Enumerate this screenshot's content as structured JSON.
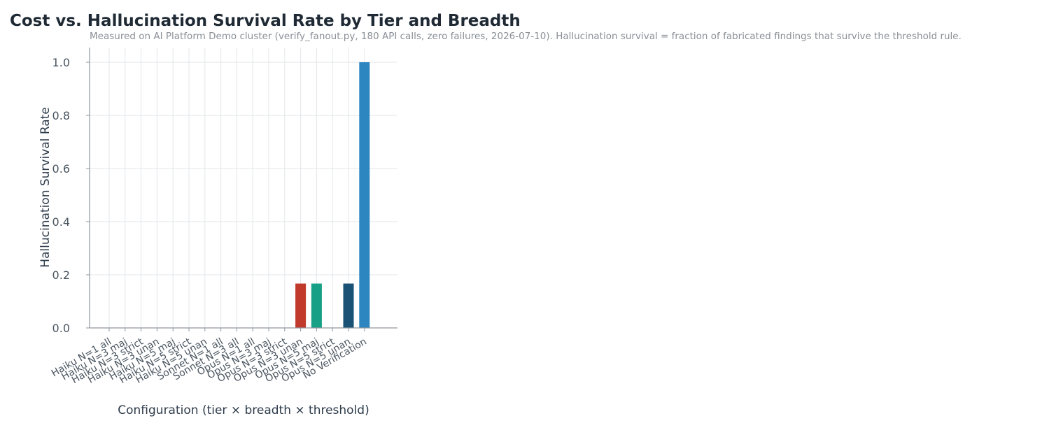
{
  "chart_data": {
    "type": "bar",
    "title": "Cost vs. Hallucination Survival Rate by Tier and Breadth",
    "subtitle": "Measured on AI Platform Demo cluster (verify_fanout.py, 180 API calls, zero failures, 2026-07-10). Hallucination survival = fraction of fabricated findings that survive the threshold rule.",
    "xlabel": "Configuration (tier × breadth × threshold)",
    "ylabel": "Hallucination Survival Rate",
    "ylim": [
      0,
      1.05
    ],
    "yticks": [
      "0.0",
      "0.2",
      "0.4",
      "0.6",
      "0.8",
      "1.0"
    ],
    "grid": true,
    "categories": [
      "Haiku N=1 all",
      "Haiku N=3 maj",
      "Haiku N=3 strict",
      "Haiku N=3 unan",
      "Haiku N=5 maj",
      "Haiku N=5 strict",
      "Haiku N=5 unan",
      "Sonnet N=1 all",
      "Sonnet N=3 all",
      "Opus N=1 all",
      "Opus N=3 maj",
      "Opus N=3 strict",
      "Opus N=3 unan",
      "Opus N=5 maj",
      "Opus N=5 strict",
      "Opus N=5 unan",
      "No Verification"
    ],
    "values": [
      0,
      0,
      0,
      0,
      0,
      0,
      0,
      0,
      0,
      0,
      0,
      0,
      0.167,
      0.167,
      0,
      0.167,
      1.0
    ],
    "colors": [
      "#c0392b",
      "#c0392b",
      "#c0392b",
      "#c0392b",
      "#c0392b",
      "#c0392b",
      "#c0392b",
      "#16a085",
      "#16a085",
      "#1a5276",
      "#1a5276",
      "#1a5276",
      "#c0392b",
      "#16a085",
      "#1a5276",
      "#1a5276",
      "#2e86c1"
    ]
  }
}
